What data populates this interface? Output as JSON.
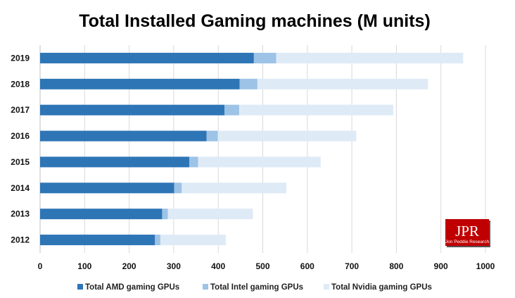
{
  "chart_data": {
    "type": "bar",
    "orientation": "horizontal",
    "stacked": true,
    "title": "Total Installed Gaming machines (M units)",
    "categories": [
      "2019",
      "2018",
      "2017",
      "2016",
      "2015",
      "2014",
      "2013",
      "2012"
    ],
    "series": [
      {
        "name": "Total AMD gaming GPUs",
        "color": "#2e75b6",
        "values": [
          480,
          448,
          414,
          374,
          335,
          301,
          274,
          258
        ]
      },
      {
        "name": "Total Intel gaming GPUs",
        "color": "#9dc3e6",
        "values": [
          50,
          40,
          33,
          25,
          20,
          17,
          13,
          12
        ]
      },
      {
        "name": "Total Nvidia gaming GPUs",
        "color": "#deebf7",
        "values": [
          420,
          383,
          346,
          311,
          275,
          235,
          191,
          147
        ]
      }
    ],
    "xlim": [
      0,
      1000
    ],
    "xticks": [
      0,
      100,
      200,
      300,
      400,
      500,
      600,
      700,
      800,
      900,
      1000
    ],
    "grid": "vertical",
    "legend": "bottom",
    "xlabel": "",
    "ylabel": ""
  },
  "logo": {
    "main": "JPR",
    "sub": "Jon Peddie Research",
    "color": "#c00000"
  }
}
